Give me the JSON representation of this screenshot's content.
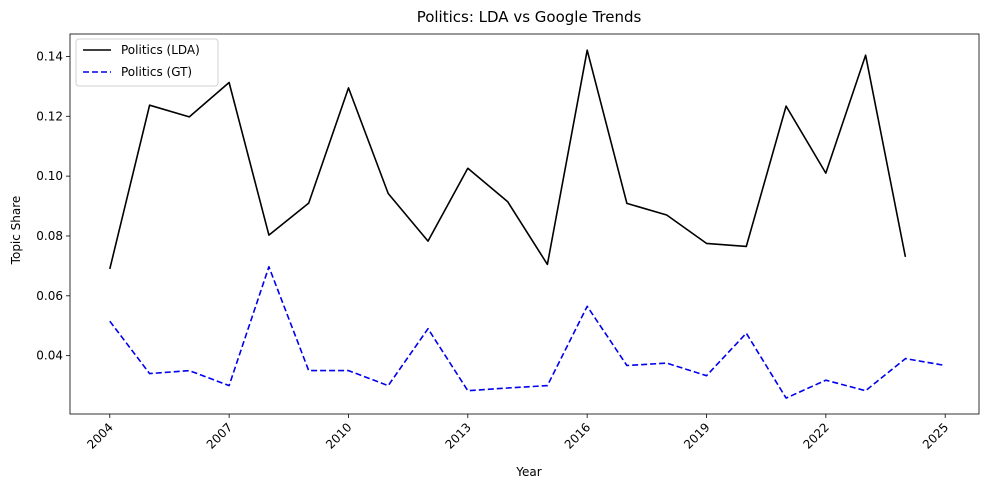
{
  "chart_data": {
    "type": "line",
    "title": "Politics: LDA vs Google Trends",
    "xlabel": "Year",
    "ylabel": "Topic Share",
    "xlim": [
      2003.0,
      2025.85
    ],
    "ylim": [
      0.0205,
      0.1475
    ],
    "x_ticks": [
      2004,
      2007,
      2010,
      2013,
      2016,
      2019,
      2022,
      2025
    ],
    "y_ticks": [
      0.04,
      0.06,
      0.08,
      0.1,
      0.12,
      0.14
    ],
    "y_tick_labels": [
      "0.04",
      "0.06",
      "0.08",
      "0.10",
      "0.12",
      "0.14"
    ],
    "grid": false,
    "legend_position": "top-left",
    "series": [
      {
        "name": "Politics (LDA)",
        "color": "#000000",
        "dash": "solid",
        "x": [
          2004,
          2005,
          2006,
          2007,
          2008,
          2009,
          2010,
          2011,
          2012,
          2013,
          2014,
          2015,
          2016,
          2017,
          2018,
          2019,
          2020,
          2021,
          2022,
          2023,
          2024
        ],
        "values": [
          0.069,
          0.1237,
          0.1198,
          0.1313,
          0.0803,
          0.091,
          0.1295,
          0.0942,
          0.0783,
          0.1026,
          0.0915,
          0.0705,
          0.1421,
          0.0909,
          0.087,
          0.0775,
          0.0765,
          0.1234,
          0.101,
          0.1404,
          0.073
        ]
      },
      {
        "name": "Politics (GT)",
        "color": "#0000ee",
        "dash": "dashed",
        "x": [
          2004,
          2005,
          2006,
          2007,
          2008,
          2009,
          2010,
          2011,
          2012,
          2013,
          2014,
          2015,
          2016,
          2017,
          2018,
          2019,
          2020,
          2021,
          2022,
          2023,
          2024,
          2025
        ],
        "values": [
          0.0515,
          0.034,
          0.035,
          0.03,
          0.0697,
          0.035,
          0.035,
          0.03,
          0.049,
          0.0283,
          0.0292,
          0.03,
          0.0565,
          0.0367,
          0.0375,
          0.0333,
          0.0475,
          0.0258,
          0.0318,
          0.0283,
          0.039,
          0.0367
        ]
      }
    ]
  }
}
